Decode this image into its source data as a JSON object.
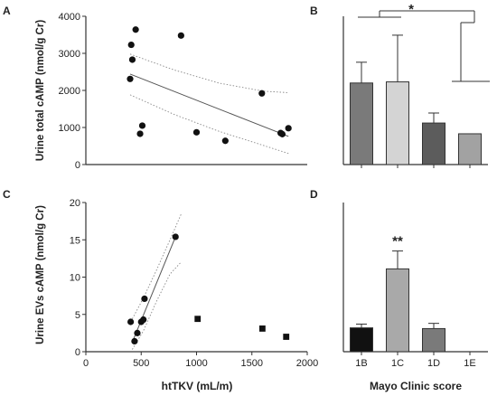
{
  "chart_data": [
    {
      "panel": "A",
      "type": "scatter",
      "ylabel": "Urine total cAMP (nmol/g Cr)",
      "xlim": [
        0,
        2000
      ],
      "ylim": [
        0,
        4000
      ],
      "yticks": [
        0,
        1000,
        2000,
        3000,
        4000
      ],
      "points": [
        {
          "x": 410,
          "y": 3230
        },
        {
          "x": 450,
          "y": 3640
        },
        {
          "x": 420,
          "y": 2830
        },
        {
          "x": 400,
          "y": 2310
        },
        {
          "x": 510,
          "y": 1050
        },
        {
          "x": 490,
          "y": 830
        },
        {
          "x": 860,
          "y": 3480
        },
        {
          "x": 1000,
          "y": 870
        },
        {
          "x": 1260,
          "y": 640
        },
        {
          "x": 1590,
          "y": 1920
        },
        {
          "x": 1760,
          "y": 850
        },
        {
          "x": 1775,
          "y": 820
        },
        {
          "x": 1830,
          "y": 980
        }
      ],
      "fit": {
        "x": [
          400,
          1830
        ],
        "y": [
          2440,
          760
        ]
      },
      "ci_upper": {
        "x": [
          400,
          800,
          1200,
          1600,
          1830
        ],
        "y": [
          2980,
          2550,
          2200,
          1980,
          1940
        ]
      },
      "ci_lower": {
        "x": [
          400,
          800,
          1200,
          1600,
          1830
        ],
        "y": [
          1880,
          1350,
          900,
          520,
          300
        ]
      }
    },
    {
      "panel": "B",
      "type": "bar",
      "categories": [
        "1B",
        "1C",
        "1D",
        "1E"
      ],
      "values": [
        2200,
        2230,
        1120,
        830
      ],
      "errors": [
        560,
        1260,
        270,
        0
      ],
      "ylim": [
        0,
        4000
      ],
      "colors": [
        "#7a7a7a",
        "#d4d4d4",
        "#5c5c5c",
        "#a2a2a2"
      ],
      "annotation": "*"
    },
    {
      "panel": "C",
      "type": "scatter",
      "ylabel": "Urine EVs cAMP (nmol/g Cr)",
      "xlabel": "htTKV (mL/m)",
      "xlim": [
        0,
        2000
      ],
      "ylim": [
        0,
        20
      ],
      "xticks": [
        0,
        500,
        1000,
        1500,
        2000
      ],
      "yticks": [
        0,
        5,
        10,
        15,
        20
      ],
      "points_circle": [
        {
          "x": 405,
          "y": 4.0
        },
        {
          "x": 440,
          "y": 1.4
        },
        {
          "x": 465,
          "y": 2.5
        },
        {
          "x": 500,
          "y": 4.0
        },
        {
          "x": 520,
          "y": 4.3
        },
        {
          "x": 530,
          "y": 7.1
        },
        {
          "x": 810,
          "y": 15.4
        }
      ],
      "points_square": [
        {
          "x": 1010,
          "y": 4.4
        },
        {
          "x": 1595,
          "y": 3.1
        },
        {
          "x": 1810,
          "y": 2.0
        }
      ],
      "fit": {
        "x": [
          420,
          810
        ],
        "y": [
          1.3,
          15.4
        ]
      },
      "ci_upper": {
        "x": [
          420,
          520,
          640,
          760,
          860
        ],
        "y": [
          4.4,
          7.2,
          11.0,
          15.0,
          18.4
        ]
      },
      "ci_lower": {
        "x": [
          420,
          520,
          640,
          760,
          860
        ],
        "y": [
          0.3,
          2.8,
          6.8,
          10.4,
          12.0
        ]
      }
    },
    {
      "panel": "D",
      "type": "bar",
      "xlabel": "Mayo Clinic score",
      "categories": [
        "1B",
        "1C",
        "1D",
        "1E"
      ],
      "values": [
        3.2,
        11.1,
        3.1,
        0
      ],
      "errors": [
        0.5,
        2.4,
        0.7,
        0
      ],
      "ylim": [
        0,
        20
      ],
      "colors": [
        "#111111",
        "#a9a9a9",
        "#7a7a7a",
        "#cccccc"
      ],
      "annotation": "**"
    }
  ]
}
